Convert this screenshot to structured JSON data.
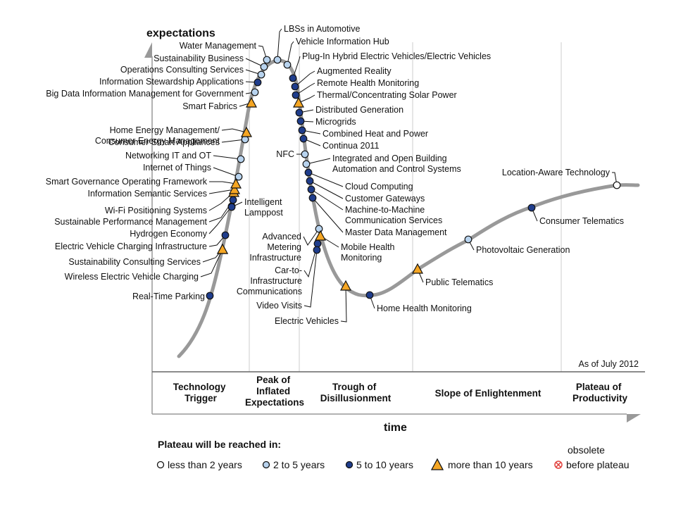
{
  "colors": {
    "curve": "#999999",
    "lt2": "#ffffff",
    "y2to5": "#b8d3ee",
    "y5to10": "#1f3d8c",
    "gt10": "#f5a623",
    "obsolete": "#e0403c",
    "grid": "#cccccc"
  },
  "axis": {
    "y_label": "expectations",
    "x_label": "time",
    "as_of": "As of July 2012"
  },
  "phases": [
    {
      "id": "trigger",
      "lines": [
        "Technology",
        "Trigger"
      ]
    },
    {
      "id": "peak",
      "lines": [
        "Peak of",
        "Inflated",
        "Expectations"
      ]
    },
    {
      "id": "trough",
      "lines": [
        "Trough of",
        "Disillusionment"
      ]
    },
    {
      "id": "slope",
      "lines": [
        "Slope of Enlightenment"
      ]
    },
    {
      "id": "plateau",
      "lines": [
        "Plateau of",
        "Productivity"
      ]
    }
  ],
  "legend": {
    "title": "Plateau will be reached in:",
    "lt2": "less than 2 years",
    "y2to5": "2 to 5 years",
    "y5to10": "5 to 10 years",
    "gt10": "more than 10 years",
    "obsolete_top": "obsolete",
    "obsolete_bottom": "before plateau"
  },
  "technologies": [
    {
      "name": "Real-Time Parking",
      "lines": [
        "Real-Time Parking"
      ],
      "cat": "y5to10"
    },
    {
      "name": "Wireless Electric Vehicle Charging",
      "lines": [
        "Wireless Electric Vehicle Charging"
      ],
      "cat": "gt10"
    },
    {
      "name": "Sustainability Consulting Services",
      "lines": [
        "Sustainability Consulting Services"
      ],
      "cat": "gt10"
    },
    {
      "name": "Electric Vehicle Charging Infrastructure",
      "lines": [
        "Electric Vehicle Charging Infrastructure"
      ],
      "cat": "y5to10"
    },
    {
      "name": "Hydrogen Economy",
      "lines": [
        "Hydrogen Economy"
      ],
      "cat": "y5to10"
    },
    {
      "name": "Sustainable Performance Management",
      "lines": [
        "Sustainable Performance Management"
      ],
      "cat": "y5to10"
    },
    {
      "name": "Wi-Fi Positioning Systems",
      "lines": [
        "Wi-Fi Positioning Systems"
      ],
      "cat": "gt10"
    },
    {
      "name": "Intelligent Lamppost",
      "lines": [
        "Intelligent",
        "Lamppost"
      ],
      "cat": "y5to10"
    },
    {
      "name": "Information Semantic Services",
      "lines": [
        "Information Semantic Services"
      ],
      "cat": "gt10"
    },
    {
      "name": "Smart Governance Operating Framework",
      "lines": [
        "Smart Governance Operating Framework"
      ],
      "cat": "gt10"
    },
    {
      "name": "Internet of Things",
      "lines": [
        "Internet of Things"
      ],
      "cat": "y2to5"
    },
    {
      "name": "Networking IT and OT",
      "lines": [
        "Networking IT and OT"
      ],
      "cat": "y2to5"
    },
    {
      "name": "Consumer Smart Appliances",
      "lines": [
        "Consumer Smart Appliances"
      ],
      "cat": "y2to5"
    },
    {
      "name": "Home Energy Management/ Consumer Energy Management",
      "lines": [
        "Home Energy Management/",
        "Consumer Energy Management"
      ],
      "cat": "gt10"
    },
    {
      "name": "Smart Fabrics",
      "lines": [
        "Smart Fabrics"
      ],
      "cat": "gt10"
    },
    {
      "name": "Big Data Information Management for Government",
      "lines": [
        "Big Data Information Management for Government"
      ],
      "cat": "y2to5"
    },
    {
      "name": "Information Stewardship Applications",
      "lines": [
        "Information Stewardship Applications"
      ],
      "cat": "y5to10"
    },
    {
      "name": "Operations Consulting Services",
      "lines": [
        "Operations Consulting Services"
      ],
      "cat": "y2to5"
    },
    {
      "name": "Sustainability Business",
      "lines": [
        "Sustainability Business"
      ],
      "cat": "y2to5"
    },
    {
      "name": "Water Management",
      "lines": [
        "Water Management"
      ],
      "cat": "y2to5"
    },
    {
      "name": "LBSs in Automotive",
      "lines": [
        "LBSs in Automotive"
      ],
      "cat": "y2to5"
    },
    {
      "name": "Vehicle Information Hub",
      "lines": [
        "Vehicle Information Hub"
      ],
      "cat": "y2to5"
    },
    {
      "name": "Plug-In Hybrid Electric Vehicles/Electric Vehicles",
      "lines": [
        "Plug-In Hybrid Electric Vehicles/Electric Vehicles"
      ],
      "cat": "y5to10"
    },
    {
      "name": "Augmented Reality",
      "lines": [
        "Augmented Reality"
      ],
      "cat": "y5to10"
    },
    {
      "name": "Remote Health Monitoring",
      "lines": [
        "Remote Health Monitoring"
      ],
      "cat": "y5to10"
    },
    {
      "name": "Thermal/Concentrating Solar Power",
      "lines": [
        "Thermal/Concentrating Solar Power"
      ],
      "cat": "gt10"
    },
    {
      "name": "Distributed Generation",
      "lines": [
        "Distributed Generation"
      ],
      "cat": "y5to10"
    },
    {
      "name": "Microgrids",
      "lines": [
        "Microgrids"
      ],
      "cat": "y5to10"
    },
    {
      "name": "Combined Heat and Power",
      "lines": [
        "Combined Heat and Power"
      ],
      "cat": "y5to10"
    },
    {
      "name": "Continua 2011",
      "lines": [
        "Continua 2011"
      ],
      "cat": "y5to10"
    },
    {
      "name": "NFC",
      "lines": [
        "NFC"
      ],
      "cat": "y2to5"
    },
    {
      "name": "Integrated and Open Building Automation and Control Systems",
      "lines": [
        "Integrated and Open Building",
        "Automation and Control Systems"
      ],
      "cat": "y2to5"
    },
    {
      "name": "Cloud Computing",
      "lines": [
        "Cloud Computing"
      ],
      "cat": "y5to10"
    },
    {
      "name": "Customer Gateways",
      "lines": [
        "Customer Gateways"
      ],
      "cat": "y5to10"
    },
    {
      "name": "Machine-to-Machine Communication Services",
      "lines": [
        "Machine-to-Machine",
        "Communication Services"
      ],
      "cat": "y5to10"
    },
    {
      "name": "Master Data Management",
      "lines": [
        "Master Data Management"
      ],
      "cat": "y5to10"
    },
    {
      "name": "Advanced Metering Infrastructure",
      "lines": [
        "Advanced",
        "Metering",
        "Infrastructure"
      ],
      "cat": "y2to5"
    },
    {
      "name": "Mobile Health Monitoring",
      "lines": [
        "Mobile Health",
        "Monitoring"
      ],
      "cat": "gt10"
    },
    {
      "name": "Car-to-Infrastructure Communications",
      "lines": [
        "Car-to-",
        "Infrastructure",
        "Communications"
      ],
      "cat": "y5to10"
    },
    {
      "name": "Video Visits",
      "lines": [
        "Video Visits"
      ],
      "cat": "y5to10"
    },
    {
      "name": "Electric Vehicles",
      "lines": [
        "Electric Vehicles"
      ],
      "cat": "gt10"
    },
    {
      "name": "Home Health Monitoring",
      "lines": [
        "Home Health Monitoring"
      ],
      "cat": "y5to10"
    },
    {
      "name": "Public Telematics",
      "lines": [
        "Public Telematics"
      ],
      "cat": "gt10"
    },
    {
      "name": "Photovoltaic Generation",
      "lines": [
        "Photovoltaic Generation"
      ],
      "cat": "y2to5"
    },
    {
      "name": "Consumer Telematics",
      "lines": [
        "Consumer Telematics"
      ],
      "cat": "y5to10"
    },
    {
      "name": "Location-Aware Technology",
      "lines": [
        "Location-Aware Technology"
      ],
      "cat": "lt2"
    }
  ]
}
